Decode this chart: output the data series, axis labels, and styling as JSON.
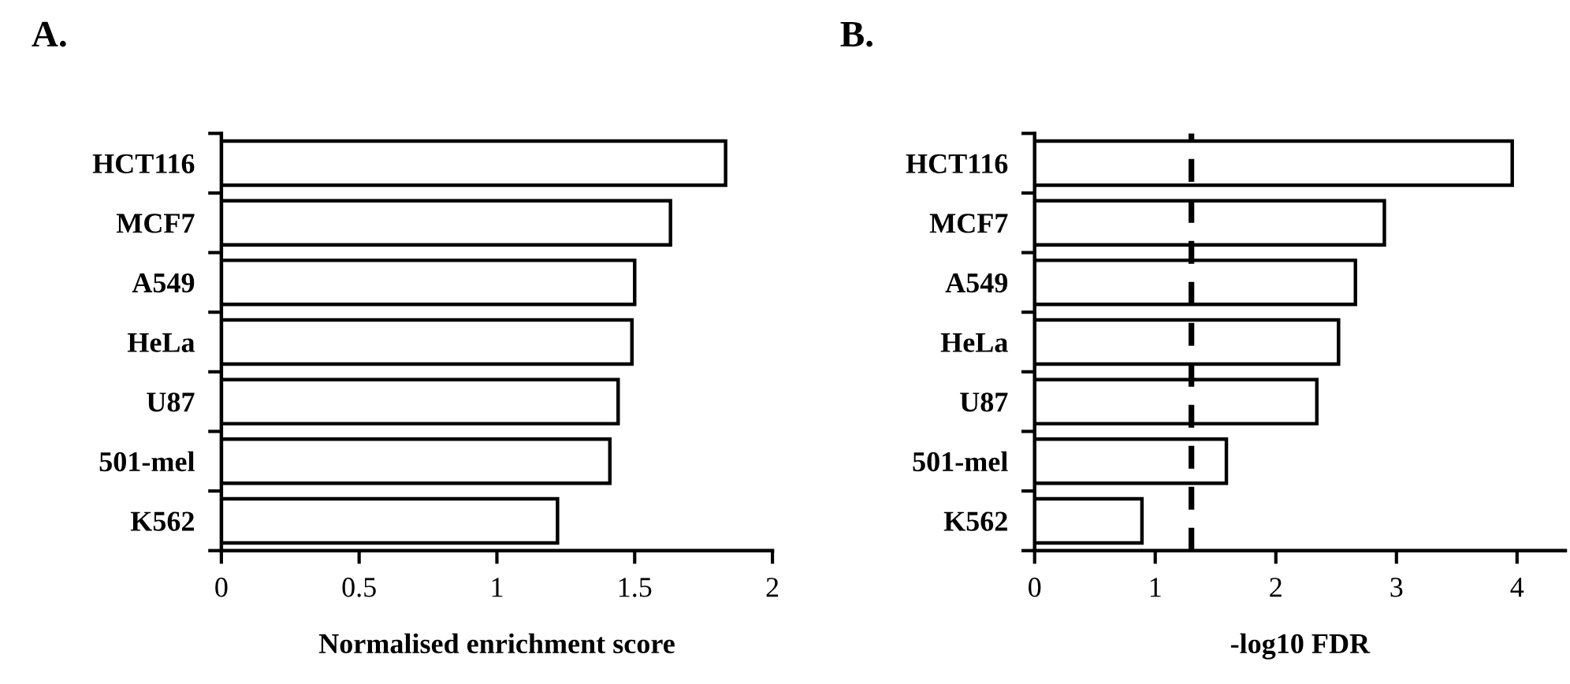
{
  "chart_data": [
    {
      "type": "bar",
      "title": "A.",
      "orientation": "horizontal",
      "categories": [
        "HCT116",
        "MCF7",
        "A549",
        "HeLa",
        "U87",
        "501-mel",
        "K562"
      ],
      "series": [
        {
          "color": "#ffffff",
          "values": [
            1.83,
            1.63,
            1.5,
            1.49,
            1.44,
            1.41,
            1.22
          ]
        }
      ],
      "xlabel": "Normalised enrichment score",
      "xlim": [
        0,
        2
      ],
      "xticks": [
        0,
        0.5,
        1,
        1.5,
        2
      ],
      "grid": false,
      "legend": false
    },
    {
      "type": "bar",
      "title": "B.",
      "orientation": "horizontal",
      "categories": [
        "HCT116",
        "MCF7",
        "A549",
        "HeLa",
        "U87",
        "501-mel",
        "K562"
      ],
      "series": [
        {
          "color": "#ffffff",
          "values": [
            3.96,
            2.9,
            2.66,
            2.52,
            2.34,
            1.59,
            0.89
          ]
        }
      ],
      "xlabel": "-log10 FDR",
      "xlim": [
        0,
        4.4
      ],
      "xticks": [
        0,
        1,
        2,
        3,
        4
      ],
      "grid": false,
      "legend": false,
      "ref_lines": [
        {
          "axis": "x",
          "value": 1.3,
          "color": "#000000",
          "line_style": "dashed"
        }
      ]
    }
  ]
}
